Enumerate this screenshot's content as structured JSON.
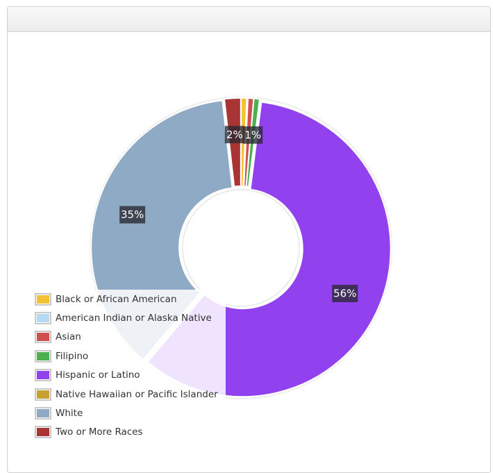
{
  "chart_data": {
    "type": "pie",
    "donut": true,
    "series": [
      {
        "name": "Black or African American",
        "value": 0.6,
        "color": "#f2c232"
      },
      {
        "name": "American Indian or Alaska Native",
        "value": 0.1,
        "color": "#b5d9f5"
      },
      {
        "name": "Asian",
        "value": 0.6,
        "color": "#d04e4e"
      },
      {
        "name": "Filipino",
        "value": 0.6,
        "color": "#4caf50"
      },
      {
        "name": "Hispanic or Latino",
        "value": 56.3,
        "color": "#9142ee"
      },
      {
        "name": "Native Hawaiian or Pacific Islander",
        "value": 0.1,
        "color": "#c9a032"
      },
      {
        "name": "White",
        "value": 35.2,
        "color": "#8eaac4"
      },
      {
        "name": "Two or More Races",
        "value": 1.7,
        "color": "#a83434"
      }
    ],
    "data_labels": [
      {
        "series": "Hispanic or Latino",
        "text": "56%"
      },
      {
        "series": "White",
        "text": "35%"
      },
      {
        "series": "Two or More Races",
        "text": "2%"
      },
      {
        "series": "Filipino",
        "text": "1%"
      }
    ],
    "legend_position": "bottom-left"
  }
}
